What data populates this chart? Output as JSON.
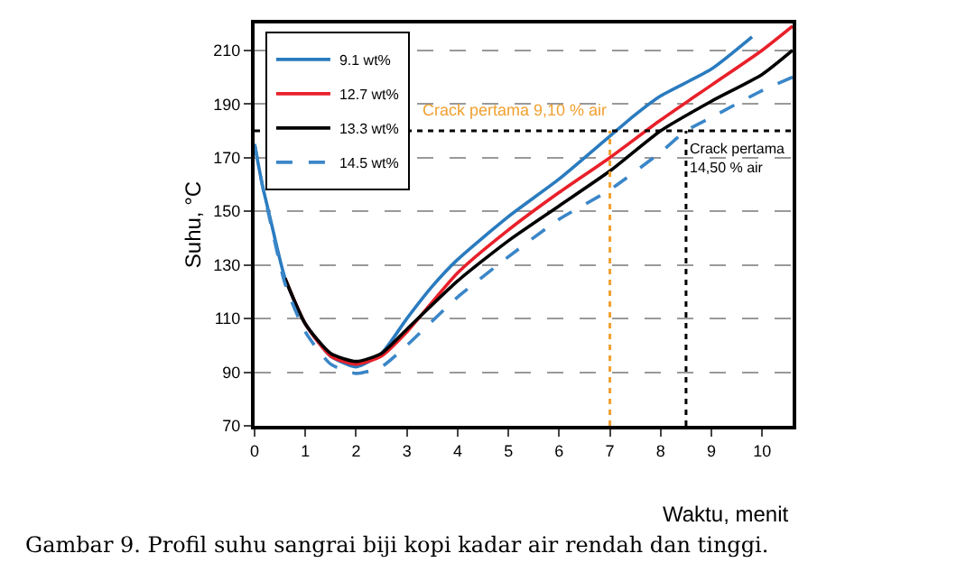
{
  "chart_data": {
    "type": "line",
    "xlabel": "Waktu, menit",
    "ylabel": "Suhu, °C",
    "xlim": [
      0,
      10.6
    ],
    "ylim": [
      70,
      220
    ],
    "xticks": [
      0,
      1,
      2,
      3,
      4,
      5,
      6,
      7,
      8,
      9,
      10
    ],
    "yticks": [
      70,
      90,
      110,
      130,
      150,
      170,
      190,
      210
    ],
    "grid": "y",
    "legend": "top left",
    "marker": "none",
    "series": [
      {
        "name": "9.1 wt%",
        "color": "#2a7bbf",
        "line_style": "solid",
        "x": [
          0,
          0.15,
          0.3,
          0.6,
          1,
          1.5,
          2,
          2.5,
          3,
          3.5,
          4,
          5,
          6,
          7,
          7.5,
          8,
          9,
          9.8
        ],
        "values": [
          175,
          160,
          148,
          125,
          108,
          96,
          92,
          97,
          110,
          122,
          132,
          148,
          162,
          178,
          186,
          193,
          203,
          215
        ]
      },
      {
        "name": "12.7 wt%",
        "color": "#e8202a",
        "line_style": "solid",
        "x": [
          0.6,
          1,
          1.5,
          2,
          2.5,
          3,
          4,
          5,
          6,
          7,
          8,
          9,
          10,
          10.6
        ],
        "values": [
          125,
          108,
          96,
          93,
          96,
          105,
          127,
          143,
          157,
          170,
          184,
          197,
          210,
          219
        ]
      },
      {
        "name": "13.3 wt%",
        "color": "#000000",
        "line_style": "solid",
        "x": [
          0.6,
          1,
          1.5,
          2,
          2.5,
          3,
          4,
          5,
          6,
          7,
          8,
          9,
          10,
          10.6
        ],
        "values": [
          125,
          108,
          97,
          94,
          97,
          106,
          124,
          139,
          152,
          165,
          180,
          191,
          201,
          210
        ]
      },
      {
        "name": "14.5 wt%",
        "color": "#3a86c8",
        "line_style": "dashed",
        "x": [
          0,
          0.15,
          0.3,
          0.6,
          1,
          1.5,
          2,
          2.5,
          3,
          4,
          5,
          6,
          7,
          8,
          8.5,
          9,
          10,
          10.6
        ],
        "values": [
          175,
          160,
          147,
          123,
          105,
          93,
          89.5,
          92,
          100,
          118,
          133,
          147,
          158,
          172,
          180,
          185,
          195,
          200
        ]
      }
    ],
    "ref_lines": [
      {
        "axis": "y",
        "value": 180,
        "color": "#000000",
        "line_style": "dotted"
      },
      {
        "axis": "x",
        "value": 7,
        "label": "Crack pertama 9,10 % air",
        "color": "#f0a030",
        "line_style": "dotted"
      },
      {
        "axis": "x",
        "value": 8.5,
        "label": "Crack pertama\n14,50 % air",
        "color": "#000000",
        "line_style": "dotted"
      }
    ],
    "annotations": [
      "Gambar 9. Profil suhu sangrai biji kopi kadar air rendah dan tinggi."
    ]
  }
}
